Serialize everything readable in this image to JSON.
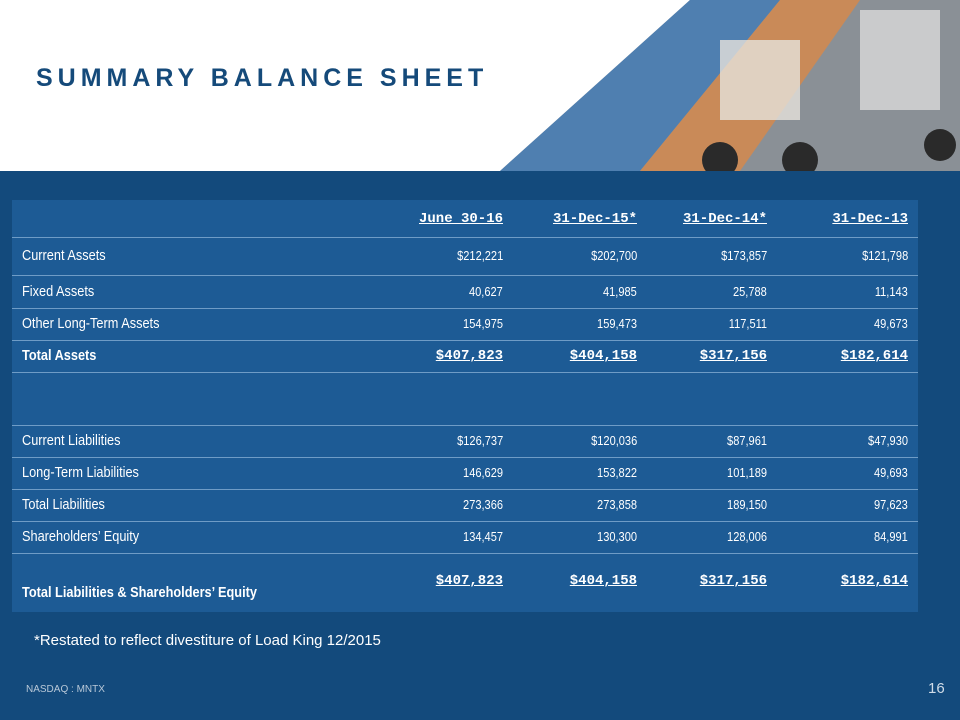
{
  "header": {
    "title": "SUMMARY BALANCE SHEET"
  },
  "table": {
    "columns": [
      "June 30-16",
      "31-Dec-15*",
      "31-Dec-14*",
      "31-Dec-13"
    ],
    "rows": [
      {
        "label": "Current Assets",
        "values": [
          "$212,221",
          "$202,700",
          "$173,857",
          "$121,798"
        ]
      },
      {
        "label": "Fixed Assets",
        "values": [
          "40,627",
          "41,985",
          "25,788",
          "11,143"
        ]
      },
      {
        "label": "Other Long-Term Assets",
        "values": [
          "154,975",
          "159,473",
          "117,511",
          "49,673"
        ]
      },
      {
        "label": "Total Assets",
        "values": [
          "$407,823",
          "$404,158",
          "$317,156",
          "$182,614"
        ]
      },
      {
        "label": "Current Liabilities",
        "values": [
          "$126,737",
          "$120,036",
          "$87,961",
          "$47,930"
        ]
      },
      {
        "label": "Long-Term Liabilities",
        "values": [
          "146,629",
          "153,822",
          "101,189",
          "49,693"
        ]
      },
      {
        "label": "Total Liabilities",
        "values": [
          "273,366",
          "273,858",
          "189,150",
          "97,623"
        ]
      },
      {
        "label": "Shareholders’ Equity",
        "values": [
          "134,457",
          "130,300",
          "128,006",
          "84,991"
        ]
      },
      {
        "label": "Total Liabilities & Shareholders’ Equity",
        "values": [
          "$407,823",
          "$404,158",
          "$317,156",
          "$182,614"
        ]
      }
    ]
  },
  "footnote": "*Restated to reflect divestiture of Load King 12/2015",
  "footer": {
    "ticker": "NASDAQ : MNTX",
    "page": "16"
  }
}
